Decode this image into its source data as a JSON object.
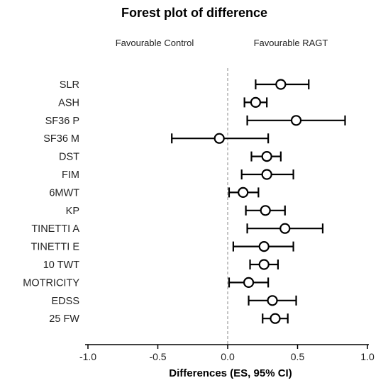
{
  "chart_data": {
    "type": "scatter",
    "title": "Forest plot of difference",
    "xlabel": "Differences (ES, 95% CI)",
    "ylabel": "",
    "xlim": [
      -1.0,
      1.0
    ],
    "x_ticks": [
      "-1.0",
      "-0.5",
      "0.0",
      "0.5",
      "1.0"
    ],
    "x_tick_values": [
      -1.0,
      -0.5,
      0.0,
      0.5,
      1.0
    ],
    "reference_line": 0.0,
    "annotations": {
      "left": "Favourable Control",
      "right": "Favourable RAGT"
    },
    "categories": [
      "SLR",
      "ASH",
      "SF36 P",
      "SF36 M",
      "DST",
      "FIM",
      "6MWT",
      "KP",
      "TINETTI A",
      "TINETTI E",
      "10 TWT",
      "MOTRICITY",
      "EDSS",
      "25 FW"
    ],
    "estimates": [
      0.38,
      0.2,
      0.49,
      -0.06,
      0.28,
      0.28,
      0.11,
      0.27,
      0.41,
      0.26,
      0.26,
      0.15,
      0.32,
      0.34
    ],
    "ci_lower": [
      0.2,
      0.12,
      0.14,
      -0.4,
      0.17,
      0.1,
      0.01,
      0.13,
      0.14,
      0.04,
      0.16,
      0.01,
      0.15,
      0.25
    ],
    "ci_upper": [
      0.58,
      0.28,
      0.84,
      0.29,
      0.38,
      0.47,
      0.22,
      0.41,
      0.68,
      0.47,
      0.36,
      0.29,
      0.49,
      0.43
    ],
    "marker": "open-circle",
    "grid": false
  }
}
